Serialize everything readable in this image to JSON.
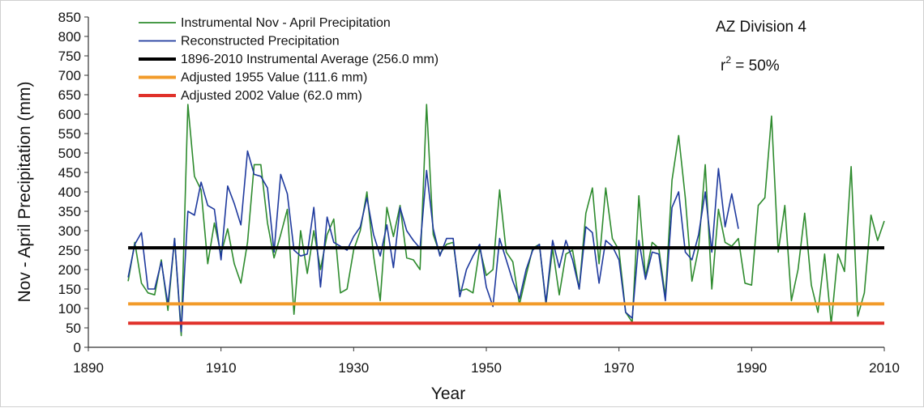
{
  "chart_data": {
    "type": "line",
    "title": "",
    "xlabel": "Year",
    "ylabel": "Nov - April Precipitation (mm)",
    "xlim": [
      1890,
      2010
    ],
    "ylim": [
      0,
      850
    ],
    "x_ticks": [
      "1890",
      "1910",
      "1930",
      "1950",
      "1970",
      "1990",
      "2010"
    ],
    "y_ticks": [
      "0",
      "50",
      "100",
      "150",
      "200",
      "250",
      "300",
      "350",
      "400",
      "450",
      "500",
      "550",
      "600",
      "650",
      "700",
      "750",
      "800",
      "850"
    ],
    "grid": false,
    "legend_position": "top-left",
    "annotations": {
      "division": "AZ Division 4",
      "r2_prefix": "r",
      "r2_sup": "2",
      "r2_suffix": " = 50%"
    },
    "series": [
      {
        "name": "Instrumental Nov - April Precipitation",
        "color": "#2e8b2e",
        "style": "line",
        "x": [
          1896,
          1897,
          1898,
          1899,
          1900,
          1901,
          1902,
          1903,
          1904,
          1905,
          1906,
          1907,
          1908,
          1909,
          1910,
          1911,
          1912,
          1913,
          1914,
          1915,
          1916,
          1917,
          1918,
          1919,
          1920,
          1921,
          1922,
          1923,
          1924,
          1925,
          1926,
          1927,
          1928,
          1929,
          1930,
          1931,
          1932,
          1933,
          1934,
          1935,
          1936,
          1937,
          1938,
          1939,
          1940,
          1941,
          1942,
          1943,
          1944,
          1945,
          1946,
          1947,
          1948,
          1949,
          1950,
          1951,
          1952,
          1953,
          1954,
          1955,
          1956,
          1957,
          1958,
          1959,
          1960,
          1961,
          1962,
          1963,
          1964,
          1965,
          1966,
          1967,
          1968,
          1969,
          1970,
          1971,
          1972,
          1973,
          1974,
          1975,
          1976,
          1977,
          1978,
          1979,
          1980,
          1981,
          1982,
          1983,
          1984,
          1985,
          1986,
          1987,
          1988,
          1989,
          1990,
          1991,
          1992,
          1993,
          1994,
          1995,
          1996,
          1997,
          1998,
          1999,
          2000,
          2001,
          2002,
          2003,
          2004,
          2005,
          2006,
          2007,
          2008,
          2009,
          2010
        ],
        "y": [
          170,
          270,
          165,
          140,
          135,
          225,
          95,
          280,
          30,
          625,
          440,
          405,
          215,
          320,
          240,
          305,
          215,
          165,
          270,
          470,
          470,
          320,
          230,
          290,
          355,
          85,
          300,
          190,
          300,
          200,
          290,
          330,
          140,
          150,
          250,
          300,
          400,
          235,
          120,
          360,
          285,
          365,
          230,
          225,
          200,
          625,
          290,
          240,
          265,
          270,
          145,
          150,
          140,
          255,
          185,
          200,
          405,
          245,
          220,
          110,
          185,
          255,
          265,
          110,
          255,
          135,
          240,
          250,
          150,
          345,
          410,
          215,
          410,
          280,
          250,
          90,
          65,
          390,
          180,
          270,
          255,
          130,
          430,
          545,
          385,
          170,
          255,
          470,
          150,
          355,
          270,
          260,
          280,
          165,
          160,
          365,
          385,
          595,
          245,
          365,
          120,
          200,
          345,
          160,
          90,
          240,
          60,
          240,
          195,
          465,
          80,
          140,
          340,
          275,
          325
        ]
      },
      {
        "name": "Reconstructed Precipitation",
        "color": "#1f3a9e",
        "style": "line",
        "x": [
          1896,
          1897,
          1898,
          1899,
          1900,
          1901,
          1902,
          1903,
          1904,
          1905,
          1906,
          1907,
          1908,
          1909,
          1910,
          1911,
          1912,
          1913,
          1914,
          1915,
          1916,
          1917,
          1918,
          1919,
          1920,
          1921,
          1922,
          1923,
          1924,
          1925,
          1926,
          1927,
          1928,
          1929,
          1930,
          1931,
          1932,
          1933,
          1934,
          1935,
          1936,
          1937,
          1938,
          1939,
          1940,
          1941,
          1942,
          1943,
          1944,
          1945,
          1946,
          1947,
          1948,
          1949,
          1950,
          1951,
          1952,
          1953,
          1954,
          1955,
          1956,
          1957,
          1958,
          1959,
          1960,
          1961,
          1962,
          1963,
          1964,
          1965,
          1966,
          1967,
          1968,
          1969,
          1970,
          1971,
          1972,
          1973,
          1974,
          1975,
          1976,
          1977,
          1978,
          1979,
          1980,
          1981,
          1982,
          1983,
          1984,
          1985,
          1986,
          1987,
          1988
        ],
        "y": [
          180,
          265,
          295,
          150,
          150,
          220,
          110,
          280,
          40,
          350,
          340,
          425,
          365,
          355,
          225,
          415,
          370,
          315,
          505,
          445,
          440,
          410,
          245,
          445,
          395,
          250,
          235,
          240,
          360,
          155,
          335,
          270,
          260,
          250,
          285,
          310,
          385,
          290,
          235,
          315,
          205,
          360,
          300,
          275,
          255,
          455,
          305,
          235,
          280,
          280,
          130,
          200,
          235,
          265,
          155,
          105,
          280,
          225,
          170,
          125,
          200,
          250,
          265,
          115,
          275,
          205,
          275,
          225,
          150,
          310,
          295,
          165,
          275,
          260,
          225,
          90,
          75,
          275,
          175,
          245,
          240,
          120,
          360,
          400,
          245,
          225,
          290,
          400,
          245,
          460,
          310,
          395,
          305
        ]
      },
      {
        "name": "1896-2010 Instrumental Average (256.0 mm)",
        "color": "#000000",
        "style": "hline",
        "x": [
          1896,
          2010
        ],
        "y": [
          256.0,
          256.0
        ]
      },
      {
        "name": "Adjusted 1955 Value (111.6 mm)",
        "color": "#f29b2a",
        "style": "hline",
        "x": [
          1896,
          2010
        ],
        "y": [
          111.6,
          111.6
        ]
      },
      {
        "name": "Adjusted 2002 Value (62.0 mm)",
        "color": "#e0312a",
        "style": "hline",
        "x": [
          1896,
          2010
        ],
        "y": [
          62.0,
          62.0
        ]
      }
    ]
  }
}
